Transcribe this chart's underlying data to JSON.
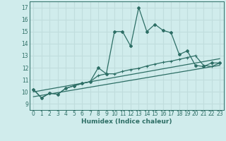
{
  "xlabel": "Humidex (Indice chaleur)",
  "background_color": "#d0ecec",
  "grid_color": "#c0dddd",
  "line_color": "#2d6e65",
  "xlim": [
    -0.5,
    23.5
  ],
  "ylim": [
    8.5,
    17.5
  ],
  "xticks": [
    0,
    1,
    2,
    3,
    4,
    5,
    6,
    7,
    8,
    9,
    10,
    11,
    12,
    13,
    14,
    15,
    16,
    17,
    18,
    19,
    20,
    21,
    22,
    23
  ],
  "yticks": [
    9,
    10,
    11,
    12,
    13,
    14,
    15,
    16,
    17
  ],
  "series1_x": [
    0,
    1,
    2,
    3,
    4,
    5,
    6,
    7,
    8,
    9,
    10,
    11,
    12,
    13,
    14,
    15,
    16,
    17,
    18,
    19,
    20,
    21,
    22,
    23
  ],
  "series1_y": [
    10.2,
    9.5,
    9.9,
    9.8,
    10.3,
    10.5,
    10.7,
    10.85,
    12.0,
    11.5,
    15.0,
    15.0,
    13.8,
    17.0,
    15.0,
    15.6,
    15.1,
    14.9,
    13.1,
    13.4,
    12.2,
    12.1,
    12.4,
    12.4
  ],
  "series2_x": [
    0,
    1,
    2,
    3,
    4,
    5,
    6,
    7,
    8,
    9,
    10,
    11,
    12,
    13,
    14,
    15,
    16,
    17,
    18,
    19,
    20,
    21,
    22,
    23
  ],
  "series2_y": [
    10.2,
    9.5,
    9.9,
    9.8,
    10.3,
    10.5,
    10.7,
    10.85,
    11.35,
    11.5,
    11.5,
    11.7,
    11.85,
    11.95,
    12.15,
    12.3,
    12.45,
    12.55,
    12.7,
    12.85,
    13.0,
    12.2,
    12.1,
    12.4
  ],
  "series3_x": [
    0,
    23
  ],
  "series3_y": [
    9.6,
    12.2
  ],
  "series4_x": [
    0,
    23
  ],
  "series4_y": [
    10.0,
    12.75
  ]
}
